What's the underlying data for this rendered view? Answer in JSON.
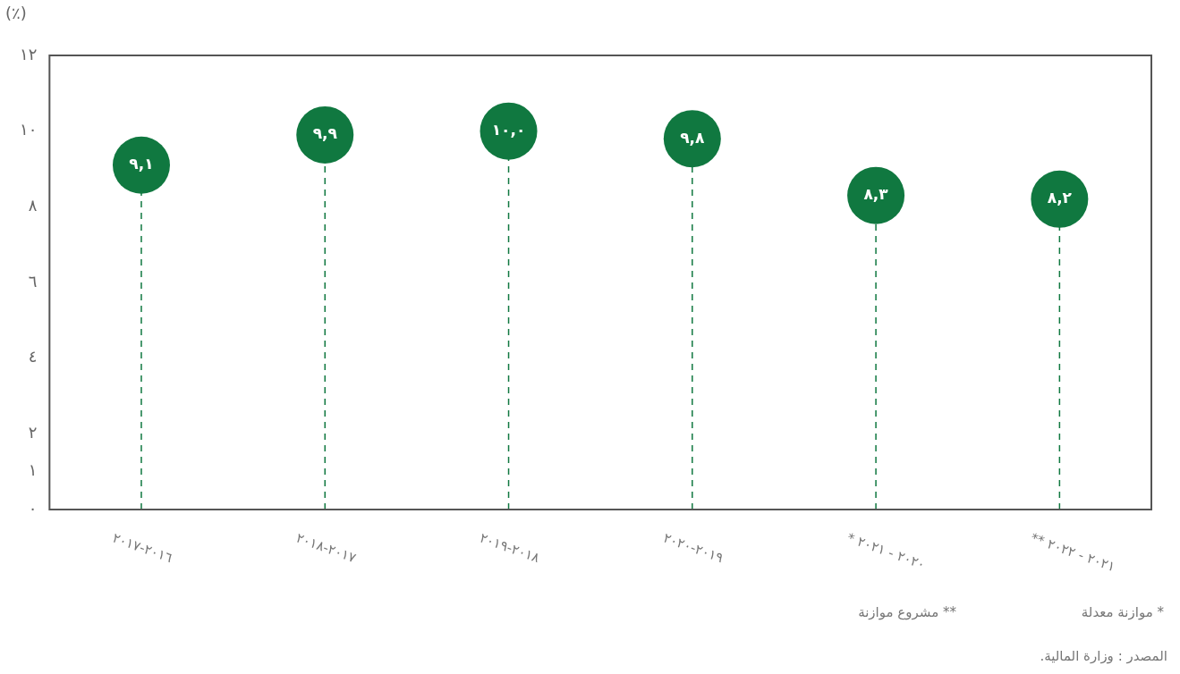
{
  "chart_data": {
    "type": "lollipop",
    "ylabel": "(٪)",
    "categories": [
      "٢٠١٦-٢٠١٧",
      "٢٠١٧-٢٠١٨",
      "٢٠١٨-٢٠١٩",
      "٢٠١٩-٢٠٢٠",
      "٢٠٢٠ - ٢٠٢١ *",
      "٢٠٢١ - ٢٠٢٢ **"
    ],
    "values": [
      9.1,
      9.9,
      10.0,
      9.8,
      8.3,
      8.2
    ],
    "value_labels": [
      "٩,١",
      "٩,٩",
      "١٠,٠",
      "٩,٨",
      "٨,٣",
      "٨,٢"
    ],
    "color": "#107840",
    "ylim": [
      0,
      12
    ],
    "yticks": [
      {
        "value": 0,
        "label": "٠"
      },
      {
        "value": 1,
        "label": "١"
      },
      {
        "value": 2,
        "label": "٢"
      },
      {
        "value": 4,
        "label": "٤"
      },
      {
        "value": 6,
        "label": "٦"
      },
      {
        "value": 8,
        "label": "٨"
      },
      {
        "value": 10,
        "label": "١٠"
      },
      {
        "value": 12,
        "label": "١٢"
      }
    ],
    "marker": "circle",
    "line_style": "dashed",
    "grid": false,
    "legend": false,
    "annotations": [
      "* موازنة معدلة",
      "** مشروع موازنة",
      "المصدر : وزارة المالية."
    ]
  }
}
